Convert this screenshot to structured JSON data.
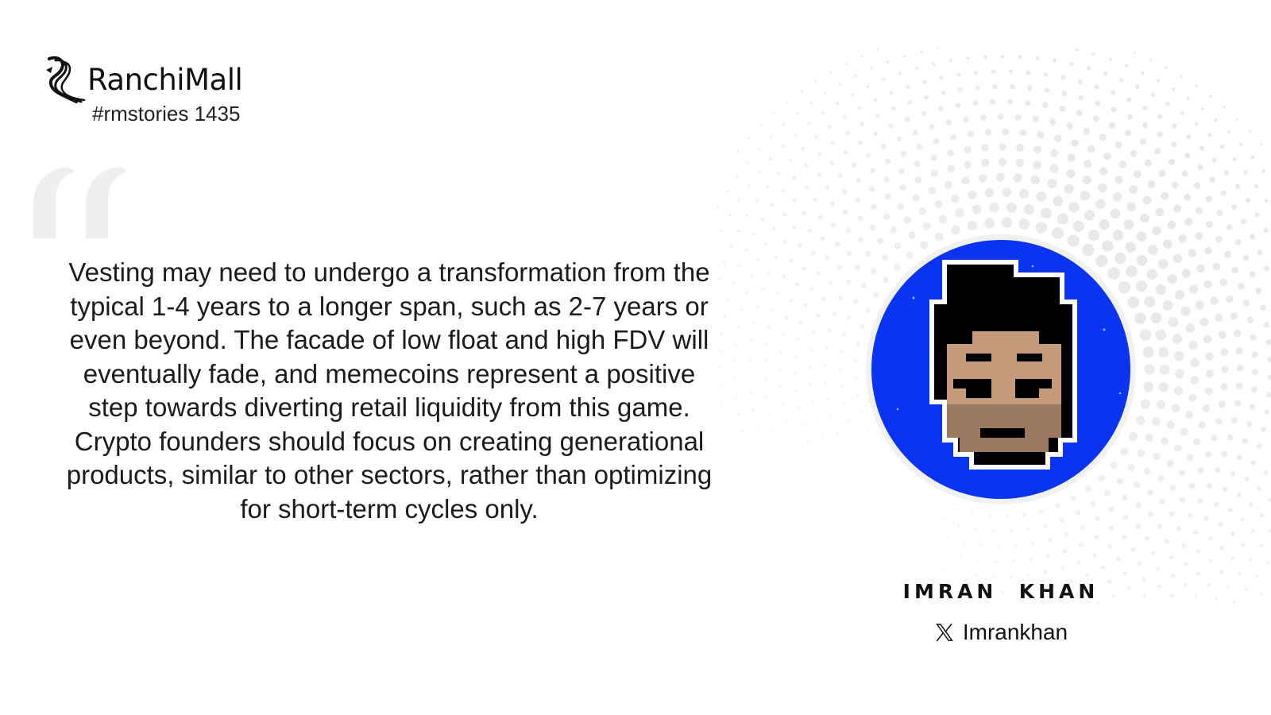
{
  "brand": {
    "name": "RanchiMall",
    "tag": "#rmstories 1435"
  },
  "quote": {
    "text": "Vesting may need to undergo a transformation from the typical 1-4 years to a longer span, such as 2-7 years or even beyond. The facade of low float and high FDV will eventually fade, and memecoins represent a positive step towards diverting retail liquidity from this game. Crypto founders should focus on creating generational products, similar to other sectors, rather than optimizing for short-term cycles only."
  },
  "author": {
    "name": "IMRAN  KHAN",
    "handle": "Imrankhan",
    "platform_icon": "x-icon"
  },
  "colors": {
    "avatar_bg": "#0b33f2",
    "quote_mark": "#efefef",
    "dots": "#e6e6e6",
    "skin": "#c49a7a",
    "beard": "#9c7a62"
  }
}
